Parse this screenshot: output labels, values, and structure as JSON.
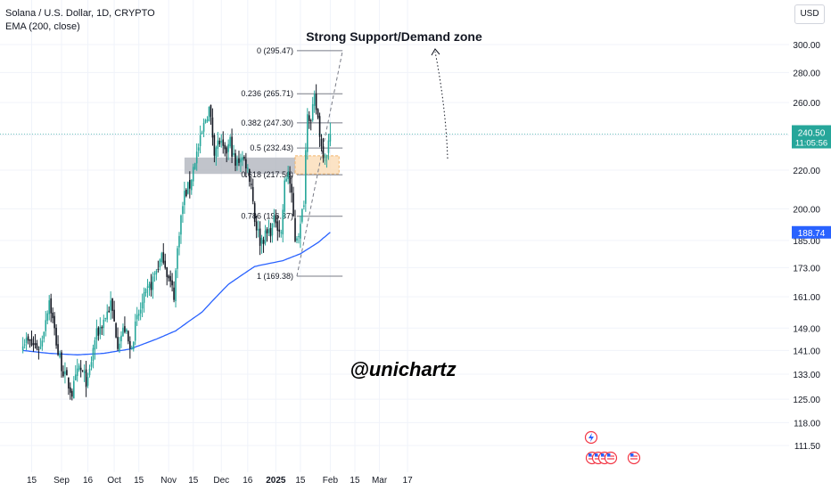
{
  "header": {
    "title": "Solana / U.S. Dollar, 1D, CRYPTO",
    "indicator": "EMA (200, close)"
  },
  "currency_button": "USD",
  "annotations": {
    "zone_label": "Strong Support/Demand zone",
    "watermark": "@unichartz"
  },
  "price_labels": {
    "last_price": "240.50",
    "countdown": "11:05:56",
    "ema_value": "188.74"
  },
  "fib_levels": [
    {
      "label": "0 (295.47)",
      "price": 295.47
    },
    {
      "label": "0.236 (265.71)",
      "price": 265.71
    },
    {
      "label": "0.382 (247.30)",
      "price": 247.3
    },
    {
      "label": "0.5 (232.43)",
      "price": 232.43
    },
    {
      "label": "0.618 (217.56)",
      "price": 217.56
    },
    {
      "label": "0.786 (196.37)",
      "price": 196.37
    },
    {
      "label": "1 (169.38)",
      "price": 169.38
    }
  ],
  "colors": {
    "up": "#26a69a",
    "down": "#131722",
    "ema": "#2962ff",
    "support_zone": "#b2b5be",
    "demand_zone": "#fbdcb6",
    "last_price": "#26a69a",
    "ema_badge": "#2962ff"
  },
  "chart_data": {
    "type": "candlestick",
    "title": "Solana / U.S. Dollar, 1D, CRYPTO",
    "y_scale": "log",
    "y_ticks": [
      111.5,
      118.0,
      125.0,
      133.0,
      141.0,
      149.0,
      161.0,
      173.0,
      185.0,
      200.0,
      220.0,
      240.0,
      260.0,
      280.0,
      300.0
    ],
    "y_tick_labels": [
      "111.50",
      "118.00",
      "125.00",
      "133.00",
      "141.00",
      "149.00",
      "161.00",
      "173.00",
      "185.00",
      "200.00",
      "220.00",
      "240.00",
      "260.00",
      "280.00",
      "300.00"
    ],
    "x_ticks": [
      {
        "label": "15",
        "date": "2024-08-15"
      },
      {
        "label": "Sep",
        "date": "2024-09-01"
      },
      {
        "label": "16",
        "date": "2024-09-16"
      },
      {
        "label": "Oct",
        "date": "2024-10-01"
      },
      {
        "label": "15",
        "date": "2024-10-15"
      },
      {
        "label": "Nov",
        "date": "2024-11-01"
      },
      {
        "label": "15",
        "date": "2024-11-15"
      },
      {
        "label": "Dec",
        "date": "2024-12-01"
      },
      {
        "label": "16",
        "date": "2024-12-16"
      },
      {
        "label": "2025",
        "date": "2025-01-01"
      },
      {
        "label": "15",
        "date": "2025-01-15"
      },
      {
        "label": "Feb",
        "date": "2025-02-01"
      },
      {
        "label": "15",
        "date": "2025-02-15"
      },
      {
        "label": "Mar",
        "date": "2025-03-01"
      },
      {
        "label": "17",
        "date": "2025-03-17"
      }
    ],
    "price_anchors": [
      [
        "2024-08-10",
        145
      ],
      [
        "2024-08-15",
        143
      ],
      [
        "2024-08-20",
        142
      ],
      [
        "2024-08-25",
        160
      ],
      [
        "2024-08-30",
        140
      ],
      [
        "2024-09-03",
        132
      ],
      [
        "2024-09-07",
        127
      ],
      [
        "2024-09-11",
        135
      ],
      [
        "2024-09-16",
        130
      ],
      [
        "2024-09-20",
        145
      ],
      [
        "2024-09-25",
        152
      ],
      [
        "2024-09-29",
        158
      ],
      [
        "2024-10-03",
        144
      ],
      [
        "2024-10-07",
        149
      ],
      [
        "2024-10-10",
        141
      ],
      [
        "2024-10-14",
        152
      ],
      [
        "2024-10-18",
        160
      ],
      [
        "2024-10-22",
        166
      ],
      [
        "2024-10-26",
        174
      ],
      [
        "2024-10-29",
        178
      ],
      [
        "2024-11-01",
        168
      ],
      [
        "2024-11-04",
        162
      ],
      [
        "2024-11-07",
        190
      ],
      [
        "2024-11-10",
        207
      ],
      [
        "2024-11-13",
        212
      ],
      [
        "2024-11-16",
        226
      ],
      [
        "2024-11-19",
        236
      ],
      [
        "2024-11-22",
        250
      ],
      [
        "2024-11-24",
        256
      ],
      [
        "2024-11-27",
        232
      ],
      [
        "2024-11-30",
        236
      ],
      [
        "2024-12-03",
        228
      ],
      [
        "2024-12-06",
        236
      ],
      [
        "2024-12-09",
        222
      ],
      [
        "2024-12-12",
        228
      ],
      [
        "2024-12-15",
        224
      ],
      [
        "2024-12-18",
        213
      ],
      [
        "2024-12-20",
        195
      ],
      [
        "2024-12-23",
        185
      ],
      [
        "2024-12-26",
        187
      ],
      [
        "2024-12-29",
        190
      ],
      [
        "2025-01-01",
        195
      ],
      [
        "2025-01-04",
        188
      ],
      [
        "2025-01-06",
        212
      ],
      [
        "2025-01-08",
        220
      ],
      [
        "2025-01-10",
        205
      ],
      [
        "2025-01-12",
        186
      ],
      [
        "2025-01-15",
        191
      ],
      [
        "2025-01-17",
        205
      ],
      [
        "2025-01-19",
        257
      ],
      [
        "2025-01-21",
        247
      ],
      [
        "2025-01-23",
        262
      ],
      [
        "2025-01-25",
        250
      ],
      [
        "2025-01-27",
        233
      ],
      [
        "2025-01-29",
        228
      ],
      [
        "2025-01-31",
        235
      ],
      [
        "2025-02-01",
        240.5
      ]
    ],
    "ema_anchors": [
      [
        "2024-08-10",
        141
      ],
      [
        "2024-08-25",
        140
      ],
      [
        "2024-09-10",
        139.5
      ],
      [
        "2024-09-25",
        140
      ],
      [
        "2024-10-10",
        141.5
      ],
      [
        "2024-10-25",
        145
      ],
      [
        "2024-11-05",
        148
      ],
      [
        "2024-11-20",
        155
      ],
      [
        "2024-12-05",
        166
      ],
      [
        "2024-12-20",
        173.5
      ],
      [
        "2025-01-05",
        176
      ],
      [
        "2025-01-15",
        179
      ],
      [
        "2025-01-25",
        184
      ],
      [
        "2025-02-01",
        188.74
      ]
    ],
    "support_zone": {
      "date_from": "2024-11-10",
      "date_to": "2025-01-12",
      "high": 227,
      "low": 218
    },
    "demand_zone": {
      "date_from": "2025-01-12",
      "date_to": "2025-02-06",
      "high": 228,
      "low": 218
    },
    "fib_range": {
      "date_from": "2025-01-13",
      "date_to": "2025-02-08",
      "high": 295.47,
      "low": 169.38
    }
  }
}
